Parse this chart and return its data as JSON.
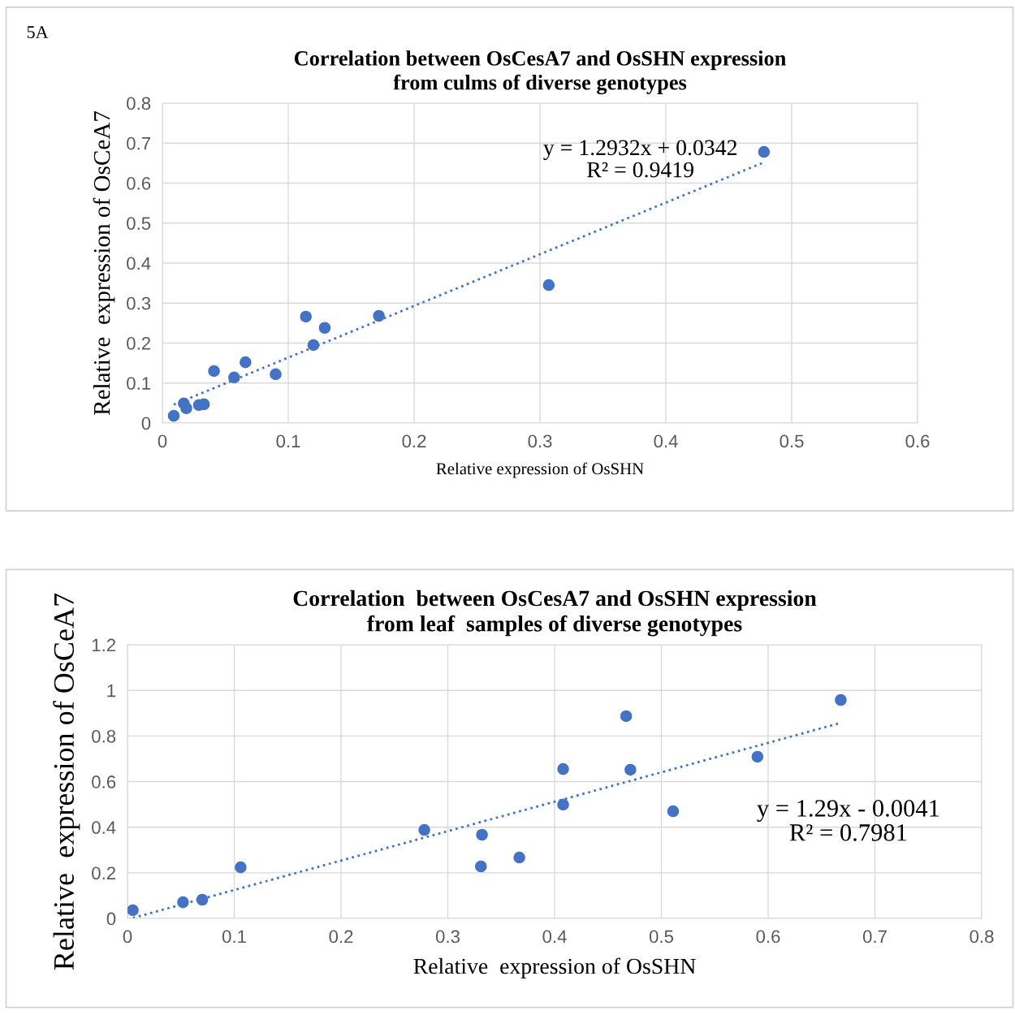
{
  "chart_data": [
    {
      "type": "scatter",
      "title": "Correlation between OsCesA7 and OsSHN expression\nfrom culms of diverse genotypes",
      "xlabel": "Relative expression of OsSHN",
      "ylabel": "Relative  expression of OsCeA7",
      "series": [
        {
          "color": "#4472c4",
          "marker": "circle",
          "x": [
            0.009,
            0.017,
            0.019,
            0.029,
            0.033,
            0.041,
            0.057,
            0.066,
            0.09,
            0.114,
            0.12,
            0.129,
            0.172,
            0.307,
            0.478
          ],
          "values": [
            0.018,
            0.049,
            0.037,
            0.045,
            0.047,
            0.13,
            0.114,
            0.152,
            0.122,
            0.266,
            0.195,
            0.238,
            0.268,
            0.345,
            0.678
          ]
        },
        {
          "type": "line",
          "color": "#4472c4",
          "line_style": "dotted",
          "marker": "none",
          "x": [
            0.009,
            0.478
          ],
          "values": [
            0.046,
            0.652
          ]
        }
      ],
      "xlim": [
        0,
        0.6
      ],
      "xticks": [
        0,
        0.1,
        0.2,
        0.3,
        0.4,
        0.5,
        0.6
      ],
      "ylim": [
        0,
        0.8
      ],
      "yticks": [
        0,
        0.1,
        0.2,
        0.3,
        0.4,
        0.5,
        0.6,
        0.7,
        0.8
      ],
      "grid": true,
      "legend": false,
      "annotations": [
        "5A",
        "y = 1.2932x + 0.0342\nR² = 0.9419"
      ]
    },
    {
      "type": "scatter",
      "title": "Correlation  between OsCesA7 and OsSHN expression\nfrom leaf  samples of diverse genotypes",
      "xlabel": "Relative  expression of OsSHN",
      "ylabel": "Relative  expression of OsCeA7",
      "series": [
        {
          "color": "#4472c4",
          "marker": "circle",
          "x": [
            0.005,
            0.052,
            0.07,
            0.106,
            0.278,
            0.332,
            0.331,
            0.367,
            0.408,
            0.408,
            0.467,
            0.471,
            0.511,
            0.59,
            0.668
          ],
          "values": [
            0.036,
            0.071,
            0.082,
            0.224,
            0.388,
            0.367,
            0.228,
            0.267,
            0.655,
            0.499,
            0.887,
            0.652,
            0.47,
            0.709,
            0.958
          ]
        },
        {
          "type": "line",
          "color": "#4472c4",
          "line_style": "dotted",
          "marker": "none",
          "x": [
            0.005,
            0.666
          ],
          "values": [
            0.002,
            0.855
          ]
        }
      ],
      "xlim": [
        0,
        0.8
      ],
      "xticks": [
        0,
        0.1,
        0.2,
        0.3,
        0.4,
        0.5,
        0.6,
        0.7,
        0.8
      ],
      "ylim": [
        0,
        1.2
      ],
      "yticks": [
        0,
        0.2,
        0.4,
        0.6,
        0.8,
        1,
        1.2
      ],
      "grid": true,
      "legend": false,
      "annotations": [
        "y = 1.29x - 0.0041\nR² = 0.7981"
      ]
    }
  ]
}
